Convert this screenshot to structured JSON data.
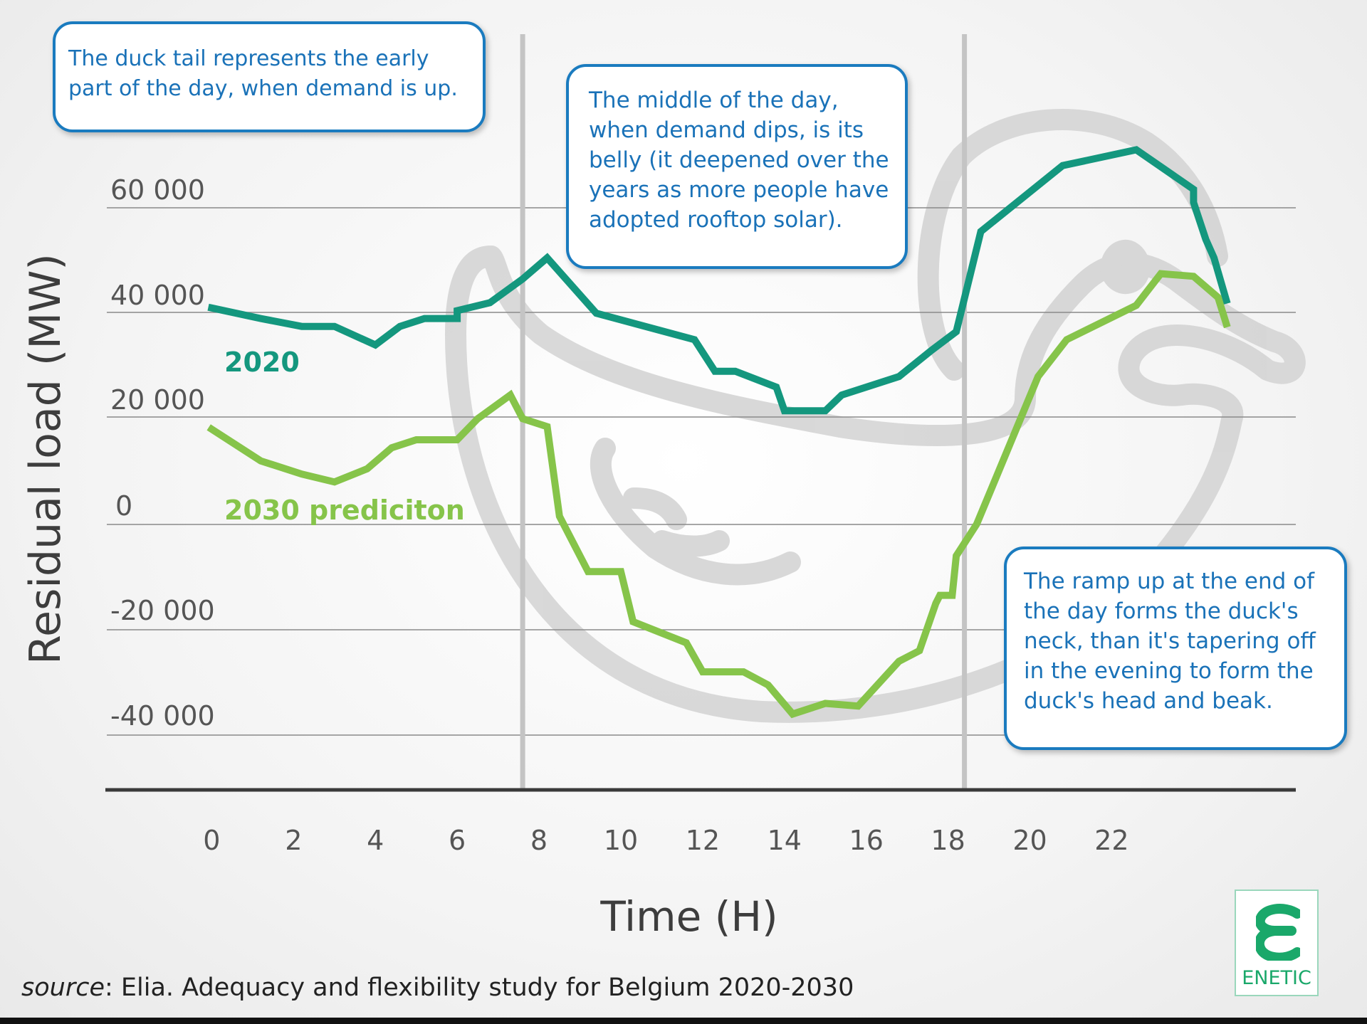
{
  "chart_data": {
    "type": "line",
    "xlabel": "Time (H)",
    "ylabel": "Residual load (MW)",
    "x_ticks": [
      0,
      2,
      4,
      6,
      8,
      10,
      12,
      14,
      16,
      18,
      20,
      22
    ],
    "x_tick_labels": [
      "0",
      "2",
      "4",
      "6",
      "8",
      "10",
      "12",
      "14",
      "16",
      "18",
      "20",
      "22"
    ],
    "y_ticks": [
      60000,
      40000,
      20000,
      0,
      -20000,
      -40000
    ],
    "y_tick_labels": [
      "60 000",
      "40 000",
      "20 000",
      "0",
      "-20 000",
      "-40 000"
    ],
    "ylim": [
      -50000,
      70000
    ],
    "xlim": [
      -2.6,
      26.5
    ],
    "grid": "horizontal",
    "vertical_markers": [
      7.6,
      18.4
    ],
    "series": [
      {
        "name": "2020",
        "label": "2020",
        "color": "#14977e",
        "points": [
          [
            0,
            41000
          ],
          [
            1.2,
            39000
          ],
          [
            2.2,
            37500
          ],
          [
            3,
            37500
          ],
          [
            4,
            34000
          ],
          [
            4.6,
            37500
          ],
          [
            5.2,
            39000
          ],
          [
            6,
            39000
          ],
          [
            6,
            40500
          ],
          [
            6.8,
            42000
          ],
          [
            7.6,
            46500
          ],
          [
            8.2,
            50500
          ],
          [
            9.4,
            40000
          ],
          [
            11.8,
            35000
          ],
          [
            12.3,
            29000
          ],
          [
            12.8,
            29000
          ],
          [
            13.8,
            26000
          ],
          [
            14,
            21500
          ],
          [
            15,
            21500
          ],
          [
            15.4,
            24500
          ],
          [
            16.8,
            28000
          ],
          [
            17.6,
            33000
          ],
          [
            18.2,
            36500
          ],
          [
            18.8,
            55500
          ],
          [
            20.8,
            68000
          ],
          [
            22.6,
            71000
          ],
          [
            24,
            63500
          ],
          [
            24,
            61000
          ],
          [
            24.3,
            54000
          ],
          [
            24.5,
            50500
          ],
          [
            24.8,
            42500
          ]
        ]
      },
      {
        "name": "2030 prediciton",
        "label": "2030 prediciton",
        "color": "#86c44a",
        "points": [
          [
            0,
            18000
          ],
          [
            1.2,
            12000
          ],
          [
            2.2,
            9500
          ],
          [
            3,
            8000
          ],
          [
            3.8,
            10500
          ],
          [
            4.4,
            14500
          ],
          [
            5,
            16000
          ],
          [
            6,
            16000
          ],
          [
            6.5,
            20000
          ],
          [
            7.3,
            24500
          ],
          [
            7.6,
            20000
          ],
          [
            8.2,
            18500
          ],
          [
            8.5,
            1500
          ],
          [
            9.2,
            -9000
          ],
          [
            10,
            -9000
          ],
          [
            10.3,
            -18500
          ],
          [
            11.6,
            -22500
          ],
          [
            12,
            -28000
          ],
          [
            13,
            -28000
          ],
          [
            13.6,
            -30500
          ],
          [
            14.2,
            -36000
          ],
          [
            15,
            -34000
          ],
          [
            15.8,
            -34500
          ],
          [
            16.8,
            -26000
          ],
          [
            17.3,
            -24000
          ],
          [
            17.7,
            -15000
          ],
          [
            17.8,
            -13500
          ],
          [
            18.1,
            -13500
          ],
          [
            18.2,
            -6000
          ],
          [
            18.7,
            0
          ],
          [
            20.2,
            28000
          ],
          [
            20.9,
            35000
          ],
          [
            22.6,
            41500
          ],
          [
            23.2,
            47500
          ],
          [
            24,
            47000
          ],
          [
            24.6,
            43000
          ],
          [
            24.8,
            38000
          ]
        ]
      }
    ]
  },
  "callouts": {
    "tail": "The duck tail represents the early part of the day, when demand is up.",
    "belly": "The middle of the day, when demand dips, is its belly (it deepened over the years as more people have adopted rooftop solar).",
    "neck": "The ramp up at the end of the day forms the duck's neck, than it's tapering off in the evening to form the duck's head and beak."
  },
  "source": {
    "prefix": "source",
    "text": ": Elia. Adequacy and flexibility study for Belgium 2020-2030"
  },
  "logo": {
    "text": "ENETIC"
  },
  "colors": {
    "callout_border": "#1a7bbf",
    "callout_text": "#1a72b8",
    "logo": "#1aa86a"
  }
}
